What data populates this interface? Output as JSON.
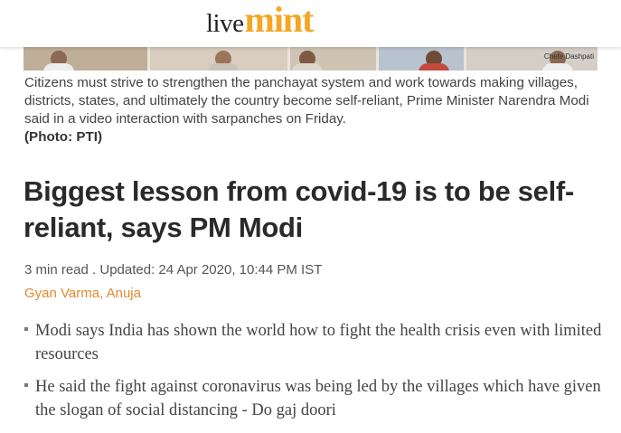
{
  "header": {
    "logo_live": "live",
    "logo_mint": "mint",
    "brand_color": "#f5a623"
  },
  "photo": {
    "sign_text": "Chefe Dashpati"
  },
  "caption": {
    "text": "Citizens must strive to strengthen the panchayat system and work towards making villages, districts, states, and ultimately the country become self-reliant, Prime Minister Narendra Modi said in a video interaction with sarpanches on Friday.",
    "credit": "(Photo: PTI)"
  },
  "article": {
    "headline": "Biggest lesson from covid-19 is to be self-reliant, says PM Modi",
    "meta": "3 min read . Updated: 24 Apr 2020, 10:44 PM IST",
    "authors": [
      {
        "name": "Gyan Varma"
      },
      {
        "name": "Anuja"
      }
    ],
    "author_separator": ", ",
    "summary": [
      "Modi says India has shown the world how to fight the health crisis even with limited resources",
      "He said the fight against coronavirus was being led by the villages which have given the slogan of social distancing - Do gaj doori"
    ]
  }
}
